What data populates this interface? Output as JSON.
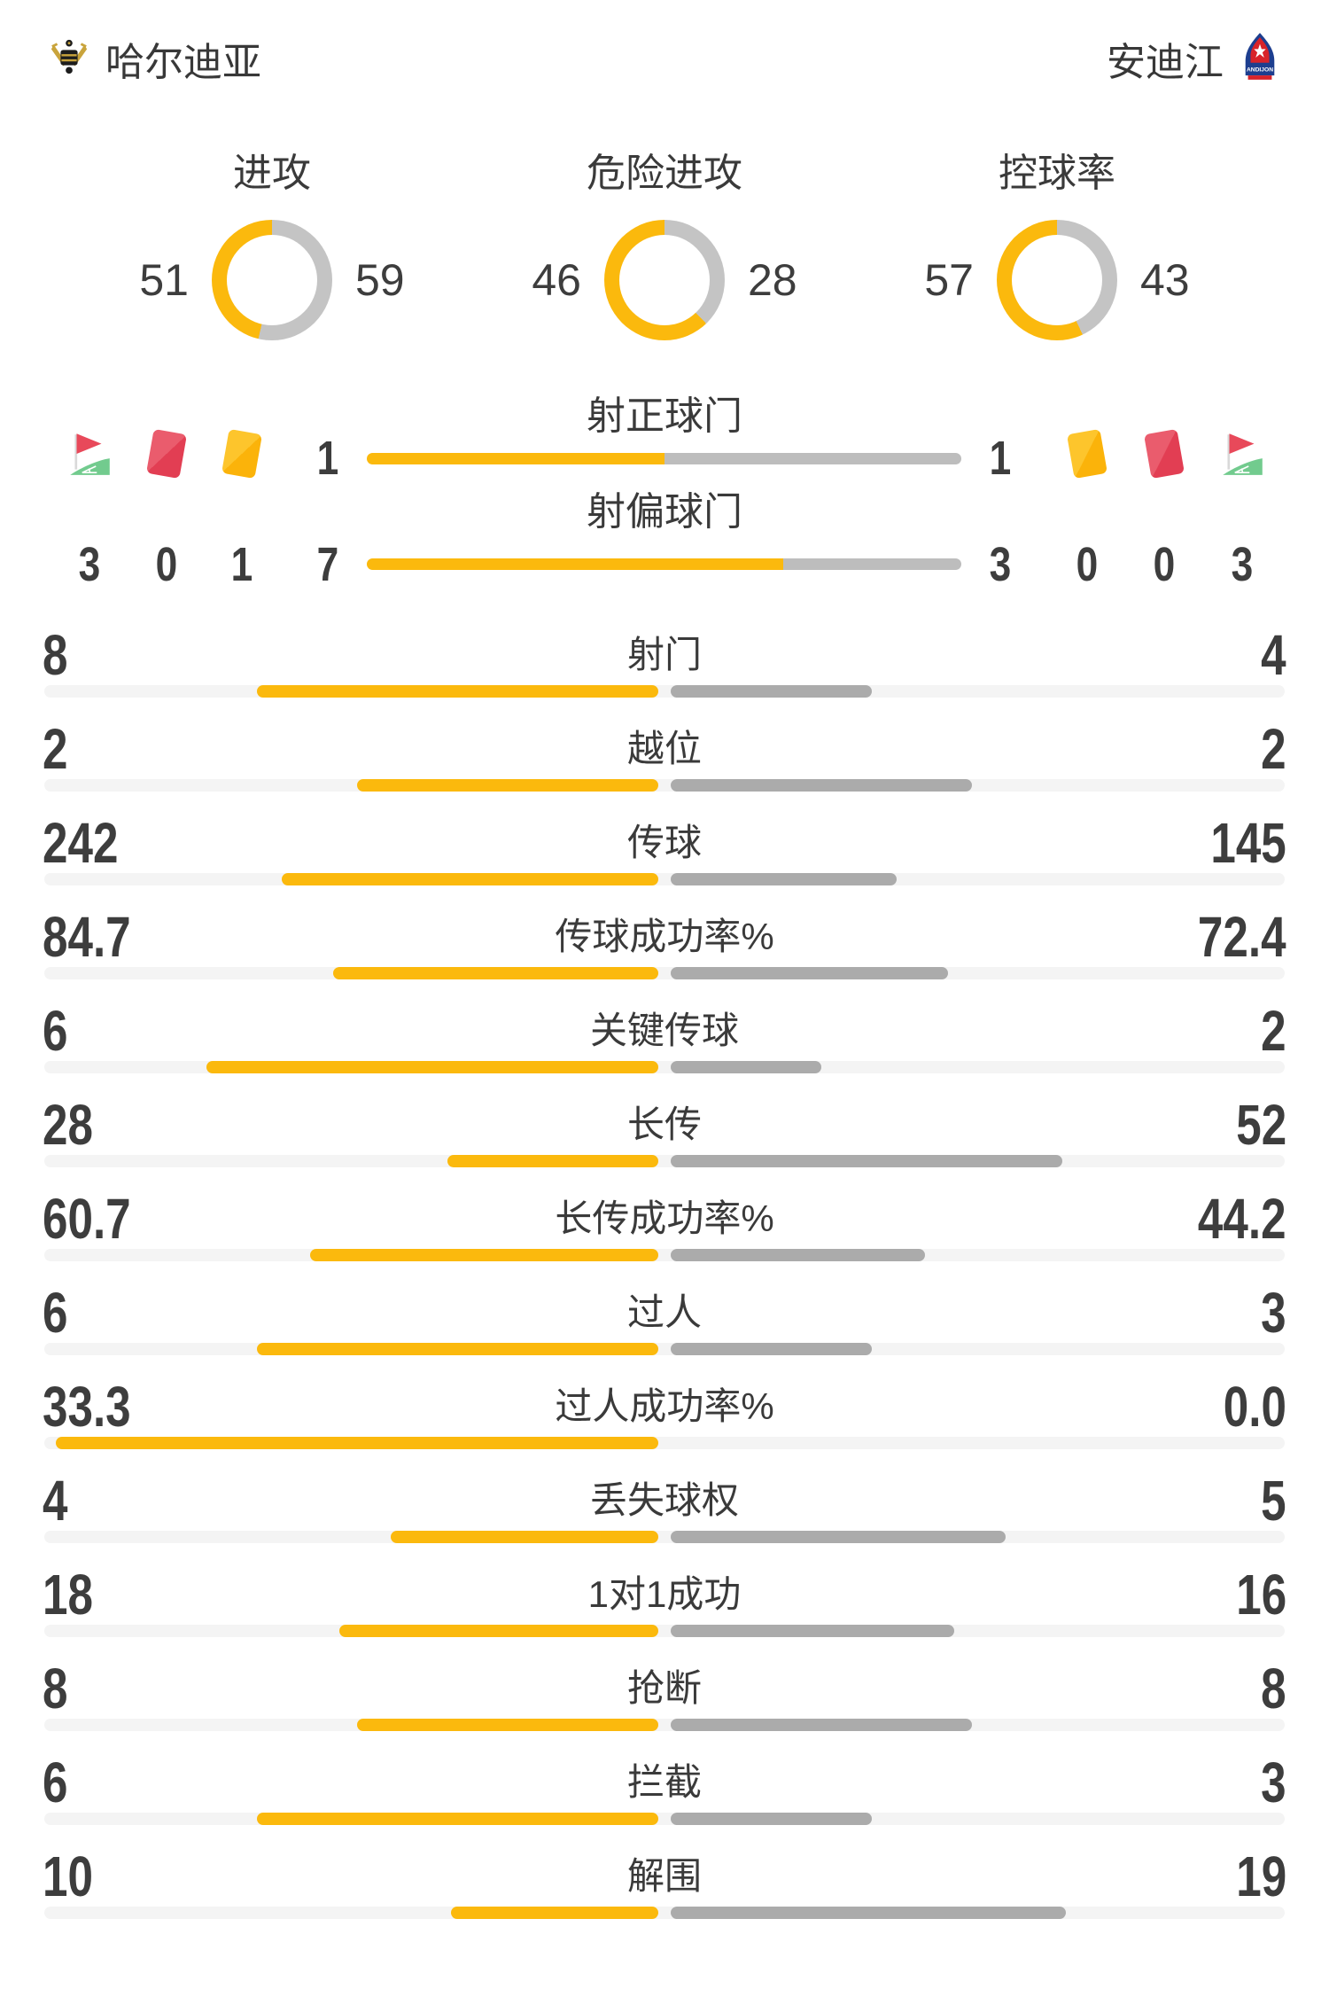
{
  "header": {
    "home": {
      "name": "哈尔迪亚"
    },
    "away": {
      "name": "安迪江",
      "logo_text": "ANDIJON"
    }
  },
  "donuts": [
    {
      "label": "进攻",
      "home": "51",
      "away": "59"
    },
    {
      "label": "危险进攻",
      "home": "46",
      "away": "28"
    },
    {
      "label": "控球率",
      "home": "57",
      "away": "43"
    }
  ],
  "shot_rows": [
    {
      "label": "射正球门",
      "home": "1",
      "away": "1"
    },
    {
      "label": "射偏球门",
      "home": "7",
      "away": "3"
    }
  ],
  "discipline": {
    "home": {
      "corner": "3",
      "red": "0",
      "yellow": "1"
    },
    "away": {
      "corner": "3",
      "red": "0",
      "yellow": "0"
    }
  },
  "stats": [
    {
      "label": "射门",
      "home": "8",
      "away": "4"
    },
    {
      "label": "越位",
      "home": "2",
      "away": "2"
    },
    {
      "label": "传球",
      "home": "242",
      "away": "145"
    },
    {
      "label": "传球成功率%",
      "home": "84.7",
      "away": "72.4"
    },
    {
      "label": "关键传球",
      "home": "6",
      "away": "2"
    },
    {
      "label": "长传",
      "home": "28",
      "away": "52"
    },
    {
      "label": "长传成功率%",
      "home": "60.7",
      "away": "44.2"
    },
    {
      "label": "过人",
      "home": "6",
      "away": "3"
    },
    {
      "label": "过人成功率%",
      "home": "33.3",
      "away": "0.0"
    },
    {
      "label": "丢失球权",
      "home": "4",
      "away": "5"
    },
    {
      "label": "1对1成功",
      "home": "18",
      "away": "16"
    },
    {
      "label": "抢断",
      "home": "8",
      "away": "8"
    },
    {
      "label": "拦截",
      "home": "6",
      "away": "3"
    },
    {
      "label": "解围",
      "home": "10",
      "away": "19"
    }
  ],
  "colors": {
    "accent_yellow": "#FBB90D",
    "bar_gray": "#ABABAB",
    "donut_gray": "#C4C4C4",
    "shotbar_gray": "#BDBDBD",
    "track_gray": "#F4F4F4",
    "text_dark": "#3B3B3B",
    "card_red_light": "#EA5C6D",
    "card_red_dark": "#E23E53",
    "card_yellow_light": "#FDC52C",
    "card_yellow_dark": "#FBB30A",
    "flag_red": "#E8495A",
    "flag_green": "#72CB8E"
  }
}
